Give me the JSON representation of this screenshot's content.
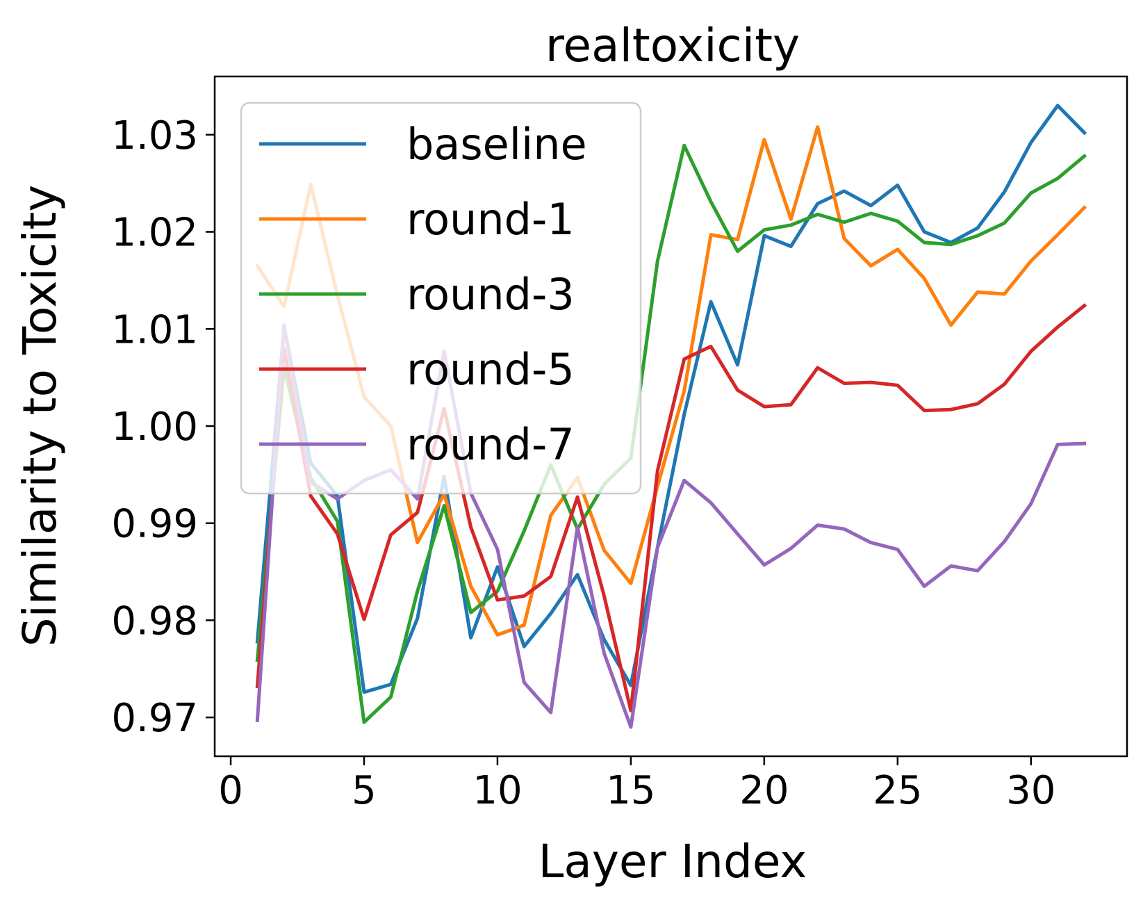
{
  "chart_data": {
    "type": "line",
    "title": "realtoxicity",
    "xlabel": "Layer Index",
    "ylabel": "Similarity to Toxicity",
    "xlim": [
      -0.6,
      33.6
    ],
    "ylim": [
      0.966,
      1.036
    ],
    "xticks": [
      0,
      5,
      10,
      15,
      20,
      25,
      30
    ],
    "xtick_labels": [
      "0",
      "5",
      "10",
      "15",
      "20",
      "25",
      "30"
    ],
    "yticks": [
      0.97,
      0.98,
      0.99,
      1.0,
      1.01,
      1.02,
      1.03
    ],
    "ytick_labels": [
      "0.97",
      "0.98",
      "0.99",
      "1.00",
      "1.01",
      "1.02",
      "1.03"
    ],
    "grid": false,
    "legend": "upper-left",
    "x": [
      1,
      2,
      3,
      4,
      5,
      6,
      7,
      8,
      9,
      10,
      11,
      12,
      13,
      14,
      15,
      16,
      17,
      18,
      19,
      20,
      21,
      22,
      23,
      24,
      25,
      26,
      27,
      28,
      29,
      30,
      31,
      32
    ],
    "series": [
      {
        "name": "baseline",
        "color": "#1f77b4",
        "values": [
          0.9778,
          1.0102,
          0.9962,
          0.9928,
          0.9726,
          0.9734,
          0.9802,
          0.9948,
          0.9782,
          0.9855,
          0.9773,
          0.9807,
          0.9847,
          0.978,
          0.9733,
          0.9875,
          1.0012,
          1.0128,
          1.0063,
          1.0196,
          1.0185,
          1.0229,
          1.0242,
          1.0227,
          1.0248,
          1.02,
          1.0189,
          1.0204,
          1.0241,
          1.0292,
          1.033,
          1.0302
        ]
      },
      {
        "name": "round-1",
        "color": "#ff7f0e",
        "values": [
          1.0165,
          1.0123,
          1.0249,
          1.0135,
          1.003,
          1.0,
          0.988,
          0.993,
          0.9835,
          0.9785,
          0.9795,
          0.9908,
          0.9947,
          0.9872,
          0.9838,
          0.9938,
          1.0036,
          1.0197,
          1.0192,
          1.0295,
          1.0213,
          1.0308,
          1.0193,
          1.0165,
          1.0182,
          1.0152,
          1.0104,
          1.0138,
          1.0136,
          1.017,
          1.0197,
          1.0225
        ]
      },
      {
        "name": "round-3",
        "color": "#2ca02c",
        "values": [
          0.9759,
          1.006,
          0.9947,
          0.9902,
          0.9695,
          0.9721,
          0.983,
          0.9918,
          0.9808,
          0.983,
          0.9892,
          0.996,
          0.9894,
          0.994,
          0.9967,
          1.017,
          1.0289,
          1.0231,
          1.018,
          1.0202,
          1.0207,
          1.0218,
          1.021,
          1.0219,
          1.0211,
          1.0189,
          1.0187,
          1.0196,
          1.0209,
          1.024,
          1.0255,
          1.0278
        ]
      },
      {
        "name": "round-5",
        "color": "#d62728",
        "values": [
          0.9732,
          1.008,
          0.9928,
          0.9889,
          0.9801,
          0.9888,
          0.9911,
          1.0018,
          0.9896,
          0.9821,
          0.9825,
          0.9845,
          0.9927,
          0.9825,
          0.9707,
          0.9954,
          1.0069,
          1.0082,
          1.0037,
          1.002,
          1.0022,
          1.006,
          1.0044,
          1.0045,
          1.0042,
          1.0016,
          1.0017,
          1.0023,
          1.0043,
          1.0077,
          1.0102,
          1.0124
        ]
      },
      {
        "name": "round-7",
        "color": "#9467bd",
        "values": [
          0.9697,
          1.0104,
          0.9942,
          0.9925,
          0.9944,
          0.9955,
          0.9925,
          1.0077,
          0.9931,
          0.9873,
          0.9736,
          0.9705,
          0.9896,
          0.9766,
          0.969,
          0.9875,
          0.9944,
          0.9921,
          0.9889,
          0.9857,
          0.9874,
          0.9898,
          0.9894,
          0.988,
          0.9873,
          0.9835,
          0.9856,
          0.9851,
          0.9881,
          0.992,
          0.9981,
          0.9982
        ]
      }
    ]
  }
}
